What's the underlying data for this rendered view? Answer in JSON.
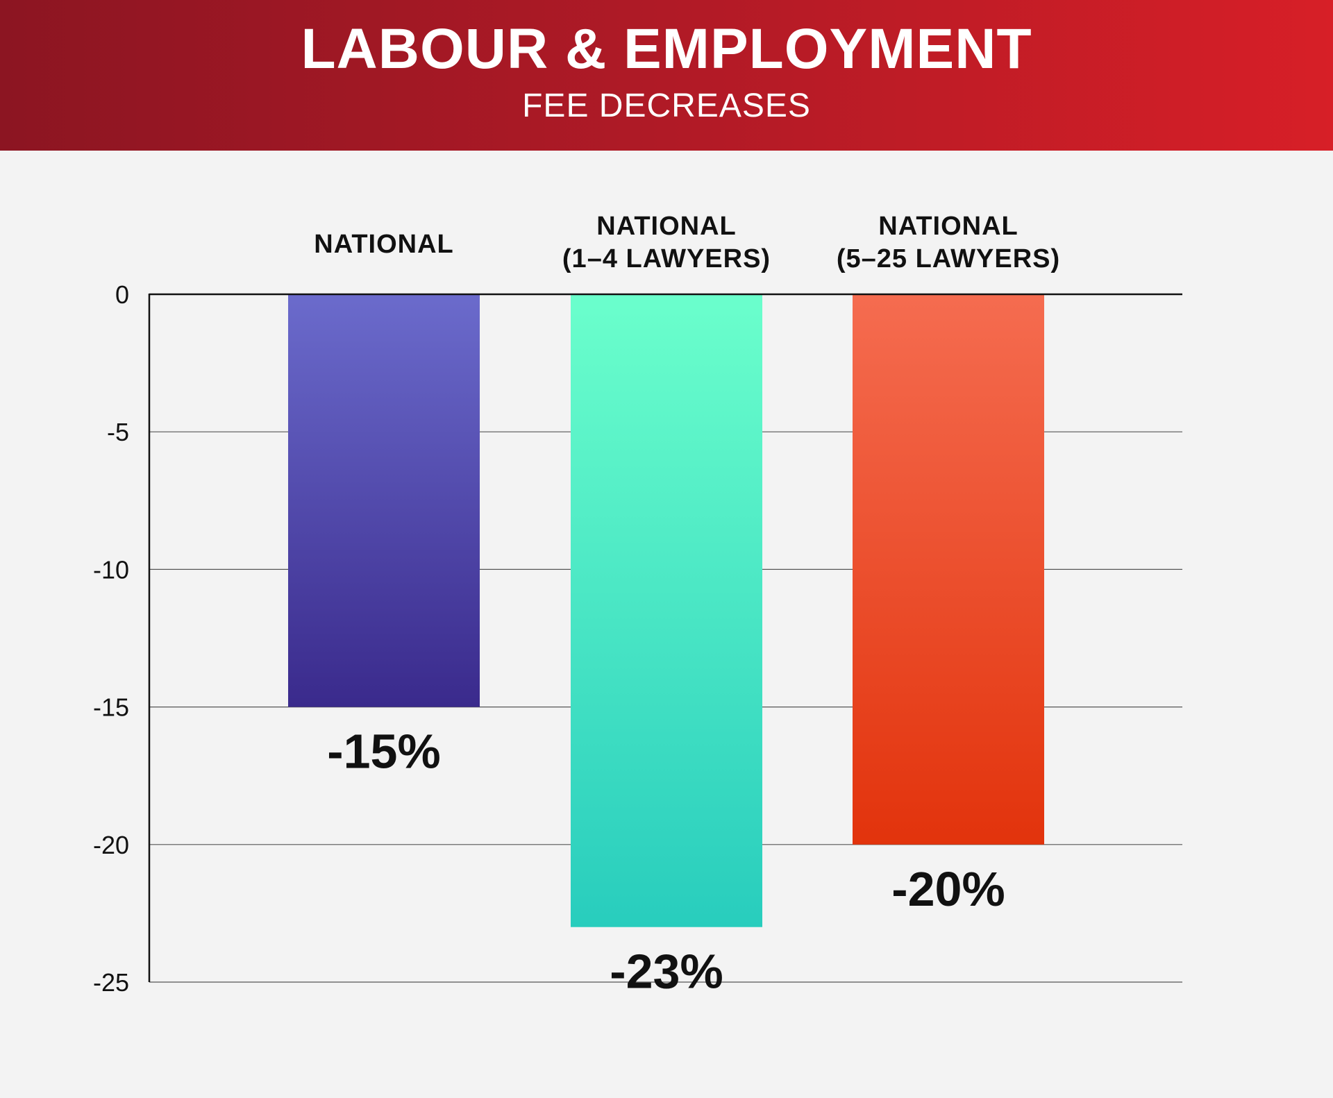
{
  "header": {
    "title": "LABOUR & EMPLOYMENT",
    "subtitle": "FEE DECREASES"
  },
  "chart_data": {
    "type": "bar",
    "title": "LABOUR & EMPLOYMENT",
    "subtitle": "FEE DECREASES",
    "categories": [
      [
        "NATIONAL"
      ],
      [
        "NATIONAL",
        "(1–4 LAWYERS)"
      ],
      [
        "NATIONAL",
        "(5–25 LAWYERS)"
      ]
    ],
    "values": [
      -15,
      -23,
      -20
    ],
    "data_labels": [
      "-15%",
      "-23%",
      "-20%"
    ],
    "ylim": [
      -25,
      0
    ],
    "yticks": [
      0,
      -5,
      -10,
      -15,
      -20,
      -25
    ],
    "ytick_labels": [
      "0",
      "-5",
      "-10",
      "-15",
      "-20",
      "-25"
    ],
    "xlabel": "",
    "ylabel": "",
    "grid": true,
    "legend": "none",
    "colors": [
      {
        "top": "#6b6bcc",
        "bottom": "#3a2a8c"
      },
      {
        "top": "#6bffcc",
        "bottom": "#28cdbd"
      },
      {
        "top": "#f56c50",
        "bottom": "#e2330c"
      }
    ]
  }
}
